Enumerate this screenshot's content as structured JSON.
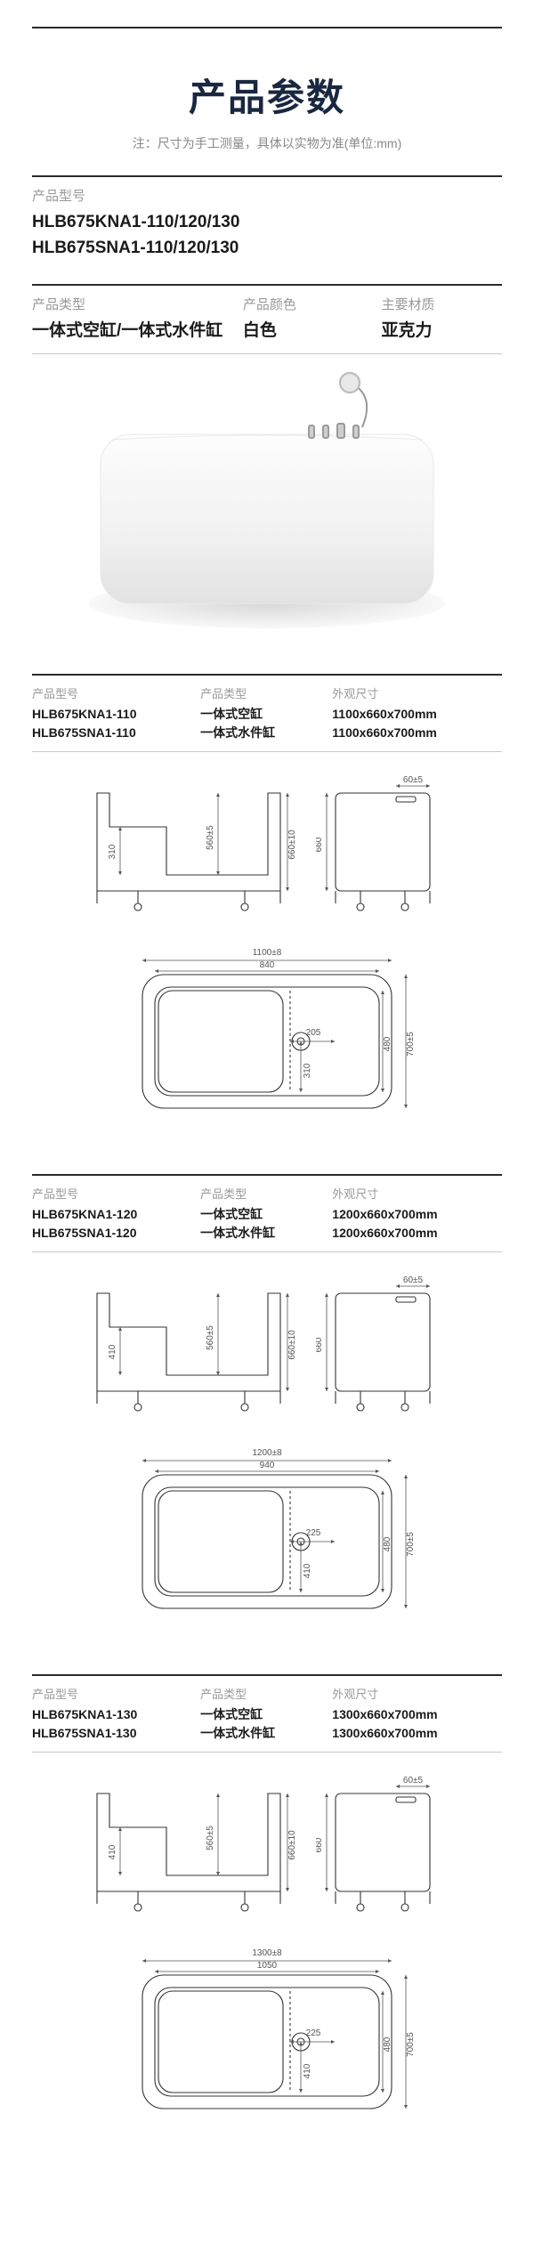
{
  "header": {
    "title": "产品参数",
    "subtitle": "注：尺寸为手工测量，具体以实物为准(单位:mm)"
  },
  "model_block": {
    "label": "产品型号",
    "line1": "HLB675KNA1-110/120/130",
    "line2": "HLB675SNA1-110/120/130"
  },
  "attrs": {
    "type_label": "产品类型",
    "type_val": "一体式空缸/一体式水件缸",
    "color_label": "产品颜色",
    "color_val": "白色",
    "material_label": "主要材质",
    "material_val": "亚克力"
  },
  "variants": [
    {
      "model_label": "产品型号",
      "model1": "HLB675KNA1-110",
      "model2": "HLB675SNA1-110",
      "type_label": "产品类型",
      "type1": "一体式空缸",
      "type2": "一体式水件缸",
      "size_label": "外观尺寸",
      "size1": "1100x660x700mm",
      "size2": "1100x660x700mm",
      "dims": {
        "length": "1100±8",
        "inner_len": "840",
        "depth": "560±5",
        "overall_h": "660±10",
        "width": "700±5",
        "seat_h": "310",
        "drain_off": "205",
        "top_off": "60±5",
        "ext_h": "660"
      }
    },
    {
      "model_label": "产品型号",
      "model1": "HLB675KNA1-120",
      "model2": "HLB675SNA1-120",
      "type_label": "产品类型",
      "type1": "一体式空缸",
      "type2": "一体式水件缸",
      "size_label": "外观尺寸",
      "size1": "1200x660x700mm",
      "size2": "1200x660x700mm",
      "dims": {
        "length": "1200±8",
        "inner_len": "940",
        "depth": "560±5",
        "overall_h": "660±10",
        "width": "700±5",
        "seat_h": "410",
        "drain_off": "225",
        "top_off": "60±5",
        "ext_h": "660"
      }
    },
    {
      "model_label": "产品型号",
      "model1": "HLB675KNA1-130",
      "model2": "HLB675SNA1-130",
      "type_label": "产品类型",
      "type1": "一体式空缸",
      "type2": "一体式水件缸",
      "size_label": "外观尺寸",
      "size1": "1300x660x700mm",
      "size2": "1300x660x700mm",
      "dims": {
        "length": "1300±8",
        "inner_len": "1050",
        "depth": "560±5",
        "overall_h": "660±10",
        "width": "700±5",
        "seat_h": "410",
        "drain_off": "225",
        "top_off": "60±5",
        "ext_h": "660"
      }
    }
  ],
  "style": {
    "line_color": "#3a3a3a",
    "dim_color": "#666",
    "fill": "#fff",
    "stroke_w": 1.2
  }
}
